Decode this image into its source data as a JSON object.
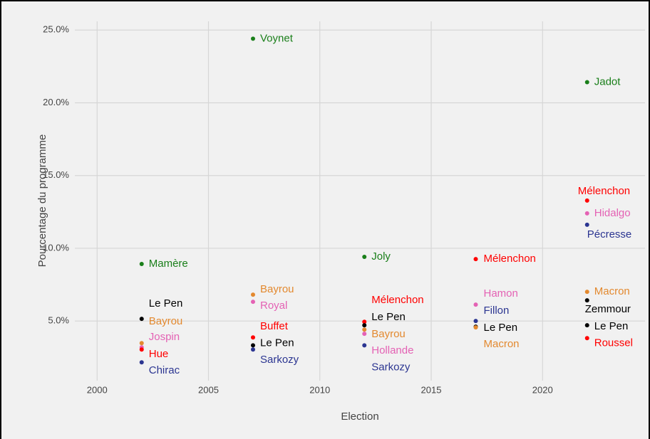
{
  "chart_data": {
    "type": "scatter",
    "x_label": "Election",
    "y_label": "Pourcentage du programme",
    "xlim": [
      1999,
      2024.6
    ],
    "ylim": [
      0.9,
      25.6
    ],
    "xticks": [
      2000,
      2005,
      2010,
      2015,
      2020
    ],
    "yticks": [
      {
        "value": 5,
        "label": "5.0%"
      },
      {
        "value": 10,
        "label": "10.0%"
      },
      {
        "value": 15,
        "label": "15.0%"
      },
      {
        "value": 20,
        "label": "20.0%"
      },
      {
        "value": 25,
        "label": "25.0%"
      }
    ],
    "grid": true,
    "points": [
      {
        "name": "Mamère",
        "x": 2002,
        "y": 8.92,
        "color": "#1a7f1a"
      },
      {
        "name": "Le Pen",
        "x": 2002,
        "y": 5.15,
        "color": "#000000"
      },
      {
        "name": "Bayrou",
        "x": 2002,
        "y": 3.48,
        "color": "#e3892f"
      },
      {
        "name": "Jospin",
        "x": 2002,
        "y": 3.19,
        "color": "#e462b4"
      },
      {
        "name": "Hue",
        "x": 2002,
        "y": 3.04,
        "color": "#ff0000"
      },
      {
        "name": "Chirac",
        "x": 2002,
        "y": 2.16,
        "color": "#2b3591"
      },
      {
        "name": "Voynet",
        "x": 2007,
        "y": 24.41,
        "color": "#1a7f1a"
      },
      {
        "name": "Bayrou",
        "x": 2007,
        "y": 6.81,
        "color": "#e3892f"
      },
      {
        "name": "Royal",
        "x": 2007,
        "y": 6.32,
        "color": "#e462b4"
      },
      {
        "name": "Buffet",
        "x": 2007,
        "y": 3.87,
        "color": "#ff0000"
      },
      {
        "name": "Le Pen",
        "x": 2007,
        "y": 3.33,
        "color": "#000000"
      },
      {
        "name": "Sarkozy",
        "x": 2007,
        "y": 3.04,
        "color": "#2b3591"
      },
      {
        "name": "Joly",
        "x": 2012,
        "y": 9.41,
        "color": "#1a7f1a"
      },
      {
        "name": "Mélenchon",
        "x": 2012,
        "y": 4.95,
        "color": "#ff0000"
      },
      {
        "name": "Le Pen",
        "x": 2012,
        "y": 4.71,
        "color": "#000000"
      },
      {
        "name": "Bayrou",
        "x": 2012,
        "y": 4.41,
        "color": "#e3892f"
      },
      {
        "name": "Hollande",
        "x": 2012,
        "y": 4.12,
        "color": "#e462b4"
      },
      {
        "name": "Sarkozy",
        "x": 2012,
        "y": 3.33,
        "color": "#2b3591"
      },
      {
        "name": "Mélenchon",
        "x": 2017,
        "y": 9.26,
        "color": "#ff0000"
      },
      {
        "name": "Hamon",
        "x": 2017,
        "y": 6.13,
        "color": "#e462b4"
      },
      {
        "name": "Fillon",
        "x": 2017,
        "y": 5.0,
        "color": "#2b3591"
      },
      {
        "name": "Le Pen",
        "x": 2017,
        "y": 4.61,
        "color": "#000000"
      },
      {
        "name": "Macron",
        "x": 2017,
        "y": 4.56,
        "color": "#e3892f"
      },
      {
        "name": "Jadot",
        "x": 2022,
        "y": 21.42,
        "color": "#1a7f1a"
      },
      {
        "name": "Mélenchon",
        "x": 2022,
        "y": 13.28,
        "color": "#ff0000"
      },
      {
        "name": "Hidalgo",
        "x": 2022,
        "y": 12.4,
        "color": "#e462b4"
      },
      {
        "name": "Pécresse",
        "x": 2022,
        "y": 11.62,
        "color": "#2b3591"
      },
      {
        "name": "Macron",
        "x": 2022,
        "y": 7.01,
        "color": "#e3892f"
      },
      {
        "name": "Zemmour",
        "x": 2022,
        "y": 6.42,
        "color": "#000000"
      },
      {
        "name": "Le Pen",
        "x": 2022,
        "y": 4.71,
        "color": "#000000"
      },
      {
        "name": "Roussel",
        "x": 2022,
        "y": 3.82,
        "color": "#ff0000"
      }
    ]
  }
}
